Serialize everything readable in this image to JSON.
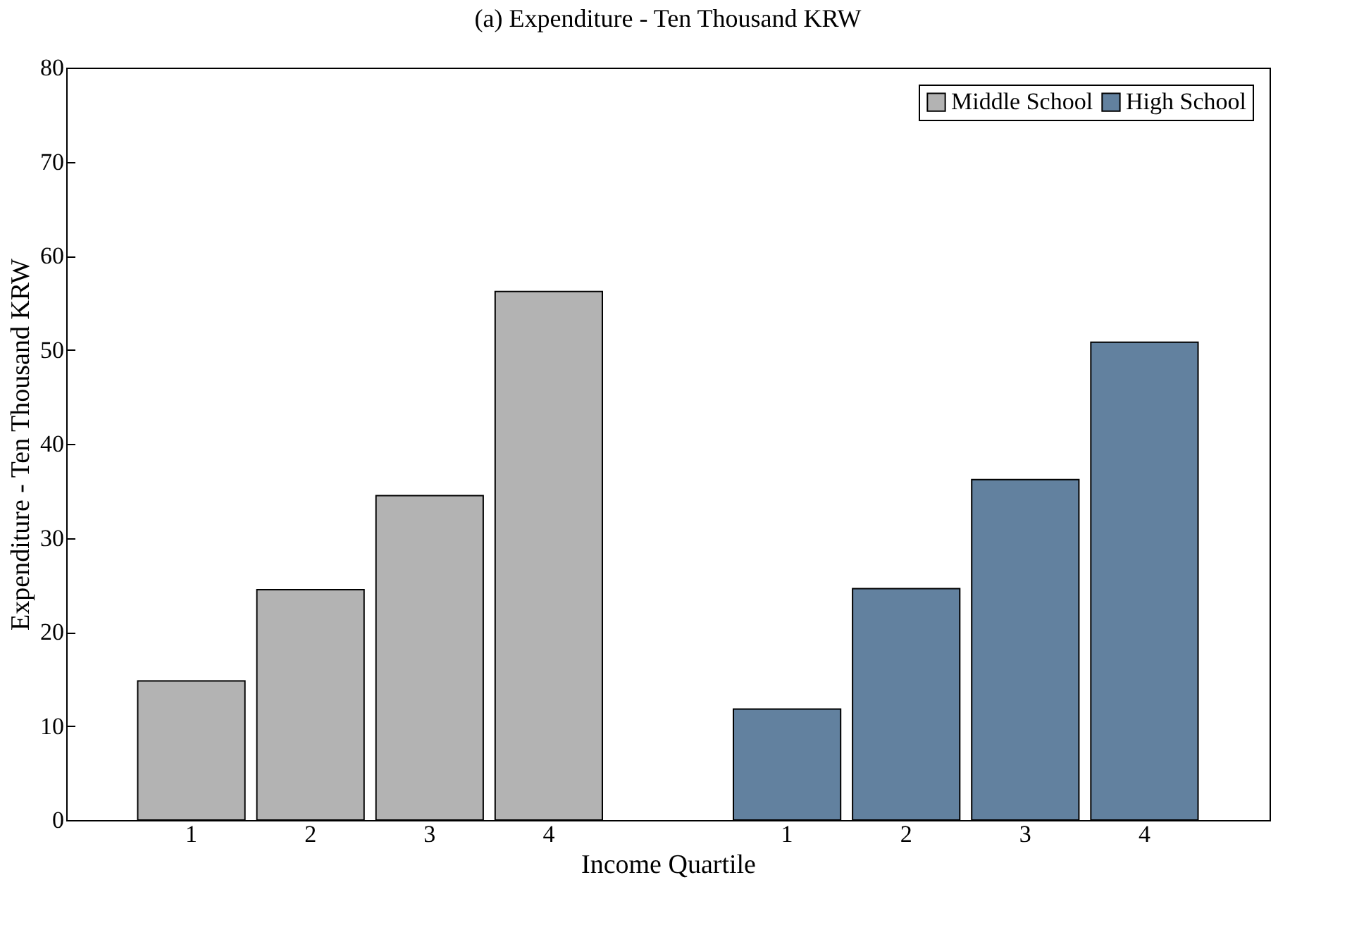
{
  "chart_data": {
    "type": "bar",
    "title": "(a) Expenditure - Ten Thousand KRW",
    "xlabel": "Income Quartile",
    "ylabel": "Expenditure - Ten Thousand KRW",
    "categories": [
      "1",
      "2",
      "3",
      "4",
      null,
      "1",
      "2",
      "3",
      "4"
    ],
    "series": [
      {
        "name": "Middle School",
        "color": "#b3b3b3",
        "values": [
          14.8,
          24.5,
          34.5,
          56.2,
          null,
          null,
          null,
          null,
          null
        ]
      },
      {
        "name": "High School",
        "color": "#62819f",
        "values": [
          null,
          null,
          null,
          null,
          null,
          11.8,
          24.6,
          36.2,
          50.8
        ]
      }
    ],
    "ylim": [
      0,
      80
    ],
    "yticks": [
      0,
      10,
      20,
      30,
      40,
      50,
      60,
      70,
      80
    ],
    "grid": false,
    "legend": "top right"
  }
}
